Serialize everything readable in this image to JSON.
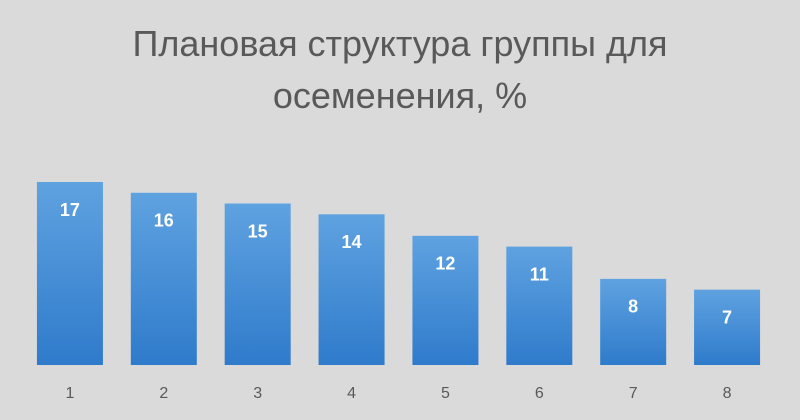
{
  "chart_data": {
    "type": "bar",
    "title": "Плановая структура группы для осеменения, %",
    "categories": [
      "1",
      "2",
      "3",
      "4",
      "5",
      "6",
      "7",
      "8"
    ],
    "values": [
      17,
      16,
      15,
      14,
      12,
      11,
      8,
      7
    ],
    "color": "#4a8fd6"
  }
}
